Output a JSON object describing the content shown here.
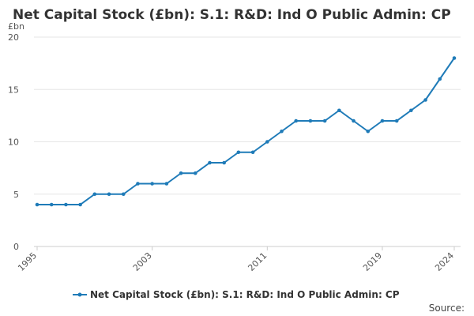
{
  "chart_data": {
    "type": "line",
    "title": "Net Capital Stock (£bn): S.1: R&D: Ind O Public Admin: CP",
    "unit_label": "£bn",
    "x": [
      1995,
      1996,
      1997,
      1998,
      1999,
      2000,
      2001,
      2002,
      2003,
      2004,
      2005,
      2006,
      2007,
      2008,
      2009,
      2010,
      2011,
      2012,
      2013,
      2014,
      2015,
      2016,
      2017,
      2018,
      2019,
      2020,
      2021,
      2022,
      2023,
      2024
    ],
    "series": [
      {
        "name": "Net Capital Stock (£bn): S.1: R&D: Ind O Public Admin: CP",
        "color": "#1f7bb8",
        "values": [
          4,
          4,
          4,
          4,
          5,
          5,
          5,
          6,
          6,
          6,
          7,
          7,
          8,
          8,
          9,
          9,
          10,
          11,
          12,
          12,
          12,
          13,
          12,
          11,
          12,
          12,
          13,
          14,
          16,
          18
        ]
      }
    ],
    "x_tick_labels": [
      "1995",
      "2003",
      "2011",
      "2019",
      "2024"
    ],
    "y_ticks": [
      "0",
      "5",
      "10",
      "15",
      "20"
    ],
    "ylim": [
      0,
      20
    ],
    "grid": true,
    "legend_position": "bottom"
  },
  "source_label": "Source:"
}
